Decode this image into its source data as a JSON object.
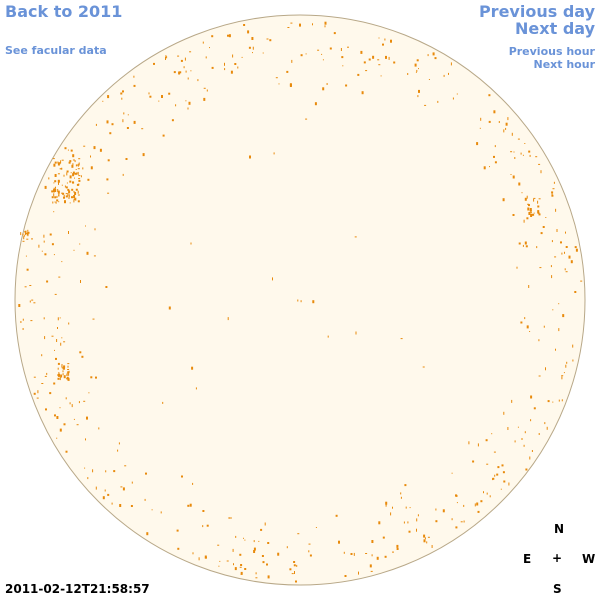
{
  "nav": {
    "back_label": "Back to 2011",
    "facular_label": "See facular data",
    "prev_day_label": "Previous day",
    "next_day_label": "Next day",
    "prev_hour_label": "Previous hour",
    "next_hour_label": "Next hour"
  },
  "timestamp": "2011-02-12T21:58:57",
  "compass": {
    "north": "N",
    "east": "E",
    "center": "+",
    "west": "W",
    "south": "S"
  },
  "colors": {
    "link": "#6a93d8",
    "disk_fill": "#fff9ec",
    "disk_outline": "#b8a888",
    "facula": "#e88a0c"
  }
}
